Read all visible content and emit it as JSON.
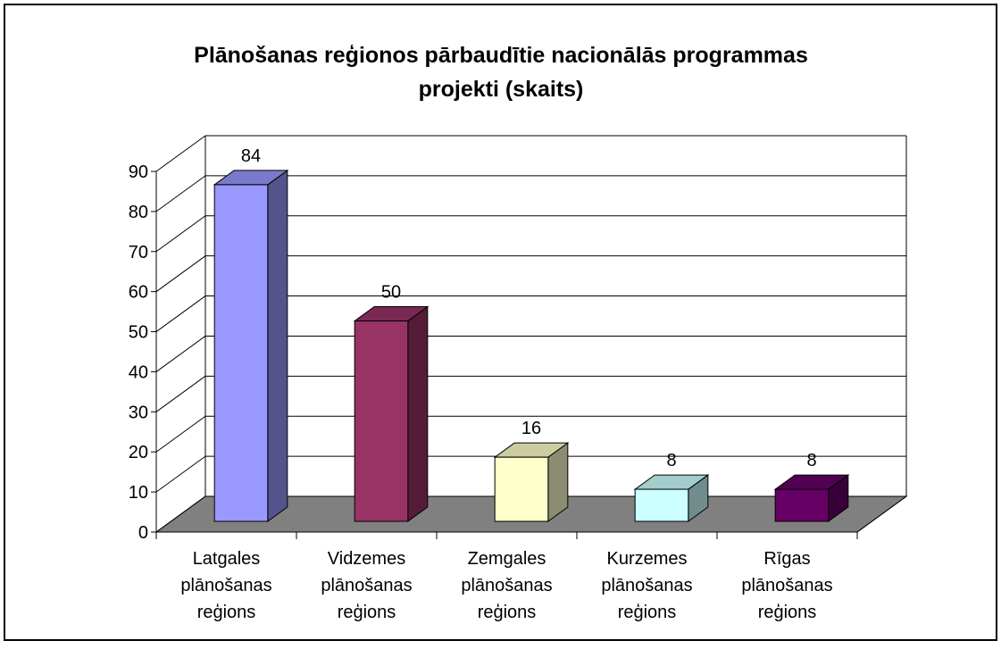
{
  "chart_data": {
    "type": "bar3d",
    "title": "Plānošanas reģionos pārbaudītie nacionālās programmas projekti (skaits)",
    "categories": [
      "Latgales plānošanas reģions",
      "Vidzemes plānošanas reģions",
      "Zemgales plānošanas reģions",
      "Kurzemes plānošanas reģions",
      "Rīgas plānošanas reģions"
    ],
    "values": [
      84,
      50,
      16,
      8,
      8
    ],
    "colors": [
      "#9999ff",
      "#993366",
      "#ffffcc",
      "#ccffff",
      "#660066"
    ],
    "ylim": [
      0,
      90
    ],
    "yticks": [
      0,
      10,
      20,
      30,
      40,
      50,
      60,
      70,
      80,
      90
    ],
    "grid": true
  }
}
